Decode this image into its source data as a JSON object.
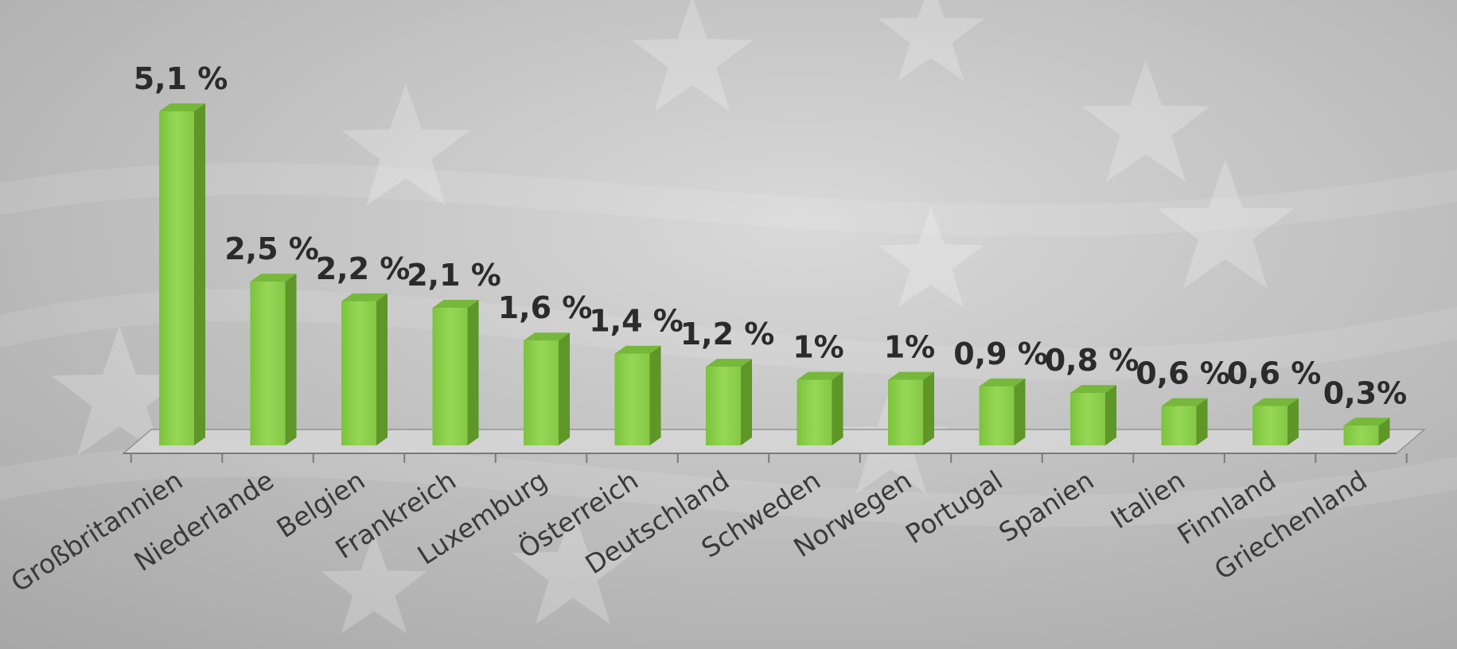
{
  "chart_data": {
    "type": "bar",
    "title": "",
    "xlabel": "",
    "ylabel": "",
    "ylim": [
      0,
      5.1
    ],
    "grid": false,
    "legend": "none",
    "bar_color": "#8fd14f",
    "bar_side_color": "#5e9628",
    "bar_top_color": "#76b83a",
    "categories": [
      "Großbritannien",
      "Niederlande",
      "Belgien",
      "Frankreich",
      "Luxemburg",
      "Österreich",
      "Deutschland",
      "Schweden",
      "Norwegen",
      "Portugal",
      "Spanien",
      "Italien",
      "Finnland",
      "Griechenland"
    ],
    "values": [
      5.1,
      2.5,
      2.2,
      2.1,
      1.6,
      1.4,
      1.2,
      1,
      1,
      0.9,
      0.8,
      0.6,
      0.6,
      0.3
    ],
    "labels": [
      "5,1 %",
      "2,5 %",
      "2,2 %",
      "2,1 %",
      "1,6 %",
      "1,4 %",
      "1,2 %",
      "1%",
      "1%",
      "0,9 %",
      "0,8 %",
      "0,6 %",
      "0,6 %",
      "0,3%"
    ]
  }
}
